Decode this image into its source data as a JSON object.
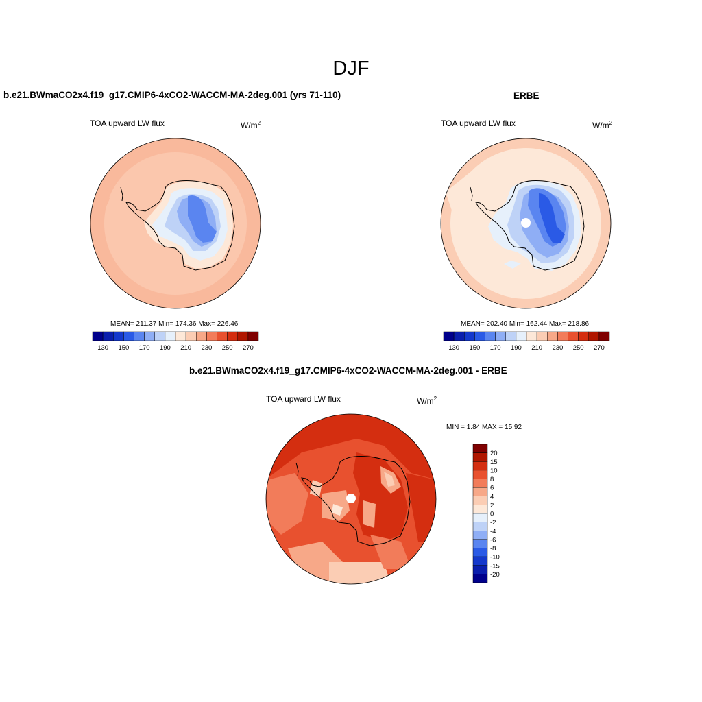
{
  "title": "DJF",
  "panels": {
    "model": {
      "title": "b.e21.BWmaCO2x4.f19_g17.CMIP6-4xCO2-WACCM-MA-2deg.001 (yrs 71-110)",
      "variable": "TOA upward LW flux",
      "units_base": "W/m",
      "units_exp": "2",
      "stats": "MEAN= 211.37  Min= 174.36  Max= 226.46"
    },
    "obs": {
      "title": "ERBE",
      "variable": "TOA upward LW flux",
      "units_base": "W/m",
      "units_exp": "2",
      "stats": "MEAN= 202.40  Min= 162.44  Max= 218.86"
    },
    "diff": {
      "title": "b.e21.BWmaCO2x4.f19_g17.CMIP6-4xCO2-WACCM-MA-2deg.001 - ERBE",
      "variable": "TOA upward LW flux",
      "units_base": "W/m",
      "units_exp": "2",
      "stats": "MIN =   1.84 MAX =  15.92"
    }
  },
  "colorbars": {
    "absolute": {
      "colors": [
        "#00008b",
        "#0a1ead",
        "#1438cc",
        "#2a5ae6",
        "#5a85f0",
        "#8faef5",
        "#bed2f7",
        "#e6f0fb",
        "#fde8d8",
        "#fbcdb4",
        "#f7a888",
        "#f27c5a",
        "#e8512f",
        "#d42e10",
        "#b01600",
        "#800000"
      ],
      "tick_labels": [
        "130",
        "150",
        "170",
        "190",
        "210",
        "230",
        "250",
        "270"
      ]
    },
    "difference": {
      "colors": [
        "#00008b",
        "#0a1ead",
        "#1438cc",
        "#2a5ae6",
        "#5a85f0",
        "#8faef5",
        "#bed2f7",
        "#e6f0fb",
        "#fde8d8",
        "#fbcdb4",
        "#f7a888",
        "#f27c5a",
        "#e8512f",
        "#d42e10",
        "#b01600",
        "#800000"
      ],
      "tick_labels": [
        "20",
        "15",
        "10",
        "8",
        "6",
        "4",
        "2",
        "0",
        "-2",
        "-4",
        "-6",
        "-8",
        "-10",
        "-15",
        "-20"
      ]
    }
  }
}
